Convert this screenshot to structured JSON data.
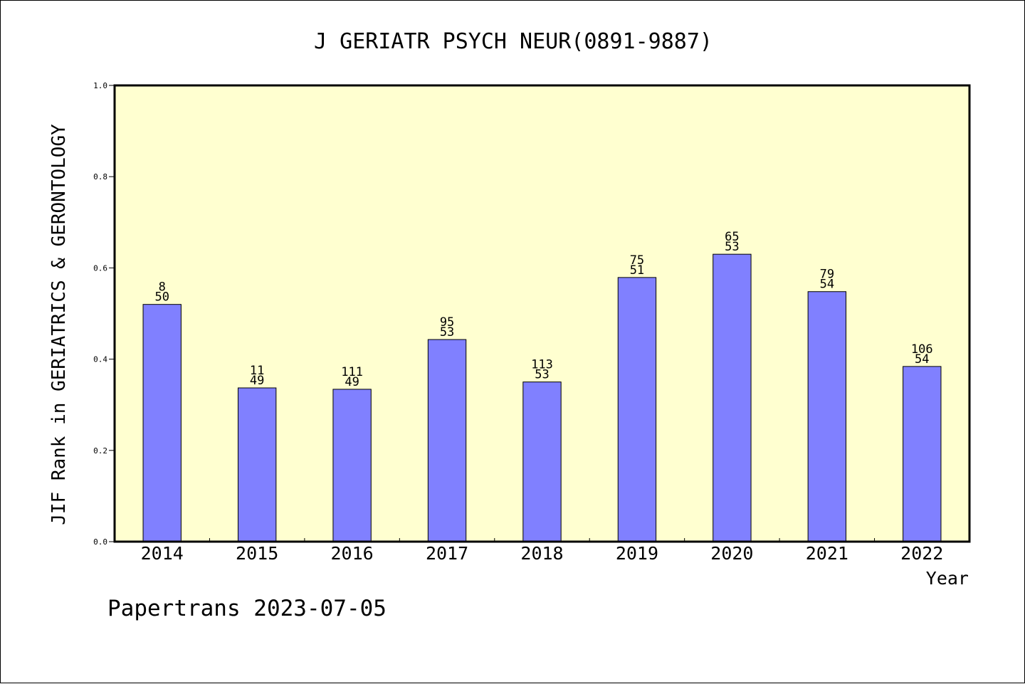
{
  "chart_data": {
    "type": "bar",
    "title": "J GERIATR PSYCH NEUR(0891-9887)",
    "ylabel": "JIF Rank in GERIATRICS & GERONTOLOGY",
    "xlabel": "Year",
    "ylim": [
      0.0,
      1.0
    ],
    "yticks": [
      "0.0",
      "0.2",
      "0.4",
      "0.6",
      "0.8",
      "1.0"
    ],
    "categories": [
      "2014",
      "2015",
      "2016",
      "2017",
      "2018",
      "2019",
      "2020",
      "2021",
      "2022"
    ],
    "values": [
      0.52,
      0.337,
      0.334,
      0.443,
      0.35,
      0.579,
      0.63,
      0.548,
      0.384
    ],
    "bar_labels_top": [
      "8",
      "11",
      "111",
      "95",
      "113",
      "75",
      "65",
      "79",
      "106"
    ],
    "bar_labels_bottom": [
      "50",
      "49",
      "49",
      "53",
      "53",
      "51",
      "53",
      "54",
      "54"
    ],
    "grid": false,
    "colors": {
      "bar": "#8080ff",
      "plot_background": "#ffffd0",
      "axis": "#000000"
    }
  },
  "footer": "Papertrans 2023-07-05"
}
